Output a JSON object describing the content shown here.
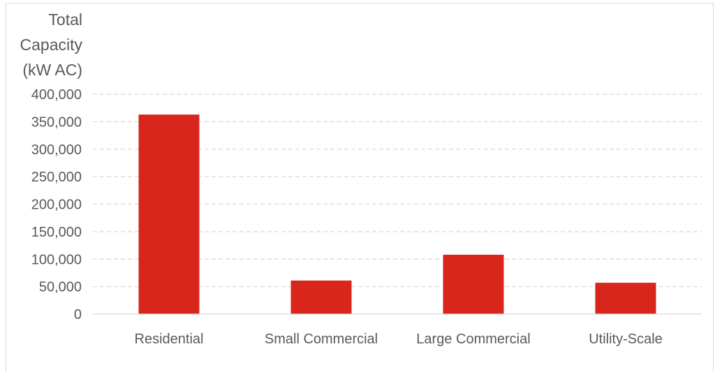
{
  "chart_data": {
    "type": "bar",
    "ylabel": [
      "Total",
      "Capacity",
      "(kW AC)"
    ],
    "categories": [
      "Residential",
      "Small Commercial",
      "Large Commercial",
      "Utility-Scale"
    ],
    "values": [
      363000,
      61000,
      108000,
      57000
    ],
    "ylim": [
      0,
      400000
    ],
    "yticks": [
      0,
      50000,
      100000,
      150000,
      200000,
      250000,
      300000,
      350000,
      400000
    ],
    "ytick_labels": [
      "0",
      "50,000",
      "100,000",
      "150,000",
      "200,000",
      "250,000",
      "300,000",
      "350,000",
      "400,000"
    ],
    "grid": true,
    "legend": "none",
    "bar_color": "#d9261c",
    "grid_color": "#d9d9d9",
    "axis_color": "#d9d9d9"
  }
}
